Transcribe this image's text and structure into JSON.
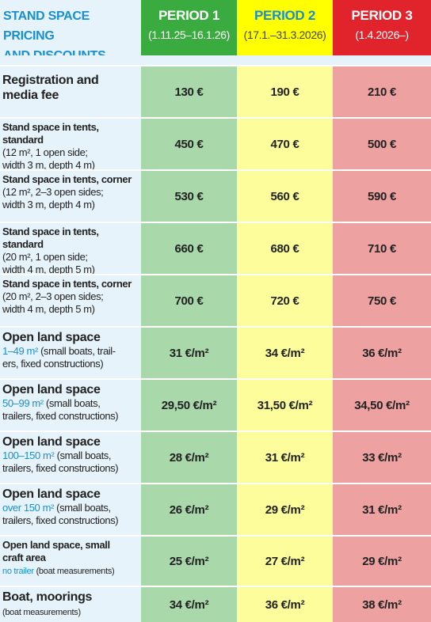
{
  "header": {
    "title": "STAND SPACE PRICING\nAND DISCOUNTS",
    "periods": [
      {
        "name": "PERIOD 1",
        "dates": "(1.11.25–16.1.26)"
      },
      {
        "name": "PERIOD 2",
        "dates": "(17.1.–31.3.2026)"
      },
      {
        "name": "PERIOD 3",
        "dates": "(1.4.2026–)"
      }
    ]
  },
  "rows": [
    {
      "title": "Registration and media fee",
      "p1": "130 €",
      "p2": "190 €",
      "p3": "210 €"
    },
    {
      "title": "Stand space in tents, standard",
      "detail_lines": [
        "(12 m², 1 open side;",
        "width 3 m, depth 4 m)"
      ],
      "p1": "450 €",
      "p2": "470 €",
      "p3": "500 €"
    },
    {
      "title": "Stand space in tents, corner",
      "detail_lines": [
        "(12 m², 2–3 open sides;",
        "width 3 m, depth 4 m)"
      ],
      "p1": "530 €",
      "p2": "560 €",
      "p3": "590 €"
    },
    {
      "title": "Stand space in tents, standard",
      "detail_lines": [
        "(20 m², 1 open side;",
        "width 4 m, depth 5 m)"
      ],
      "p1": "660 €",
      "p2": "680 €",
      "p3": "710 €"
    },
    {
      "title": "Stand space in tents, corner",
      "detail_lines": [
        "(20 m², 2–3 open sides;",
        "width 4 m, depth 5 m)"
      ],
      "p1": "700 €",
      "p2": "720 €",
      "p3": "750 €"
    },
    {
      "title": "Open land space",
      "size": "1–49 m²",
      "desc_a": " (small boats, trail-",
      "desc_b": "ers, fixed constructions)",
      "p1": "31 €/m²",
      "p2": "34 €/m²",
      "p3": "36 €/m²"
    },
    {
      "title": "Open land space",
      "size": "50–99 m²",
      "desc_a": " (small boats,",
      "desc_b": "trailers, fixed constructions)",
      "p1": "29,50 €/m²",
      "p2": "31,50 €/m²",
      "p3": "34,50 €/m²"
    },
    {
      "title": "Open land space",
      "size": "100–150 m²",
      "desc_a": " (small boats,",
      "desc_b": "trailers, fixed constructions)",
      "p1": "28 €/m²",
      "p2": "31 €/m²",
      "p3": "33 €/m²"
    },
    {
      "title": "Open land space",
      "size": "over 150 m²",
      "desc_a": " (small boats,",
      "desc_b": "trailers, fixed constructions)",
      "p1": "26 €/m²",
      "p2": "29 €/m²",
      "p3": "31 €/m²"
    },
    {
      "title": "Open land space, small craft area",
      "note_blue": "no trailer",
      "note": " (boat measurements)",
      "p1": "25 €/m²",
      "p2": "27 €/m²",
      "p3": "29 €/m²"
    },
    {
      "title": "Boat, moorings",
      "note": "(boat measurements)",
      "p1": "34 €/m²",
      "p2": "36 €/m²",
      "p3": "38 €/m²"
    }
  ]
}
